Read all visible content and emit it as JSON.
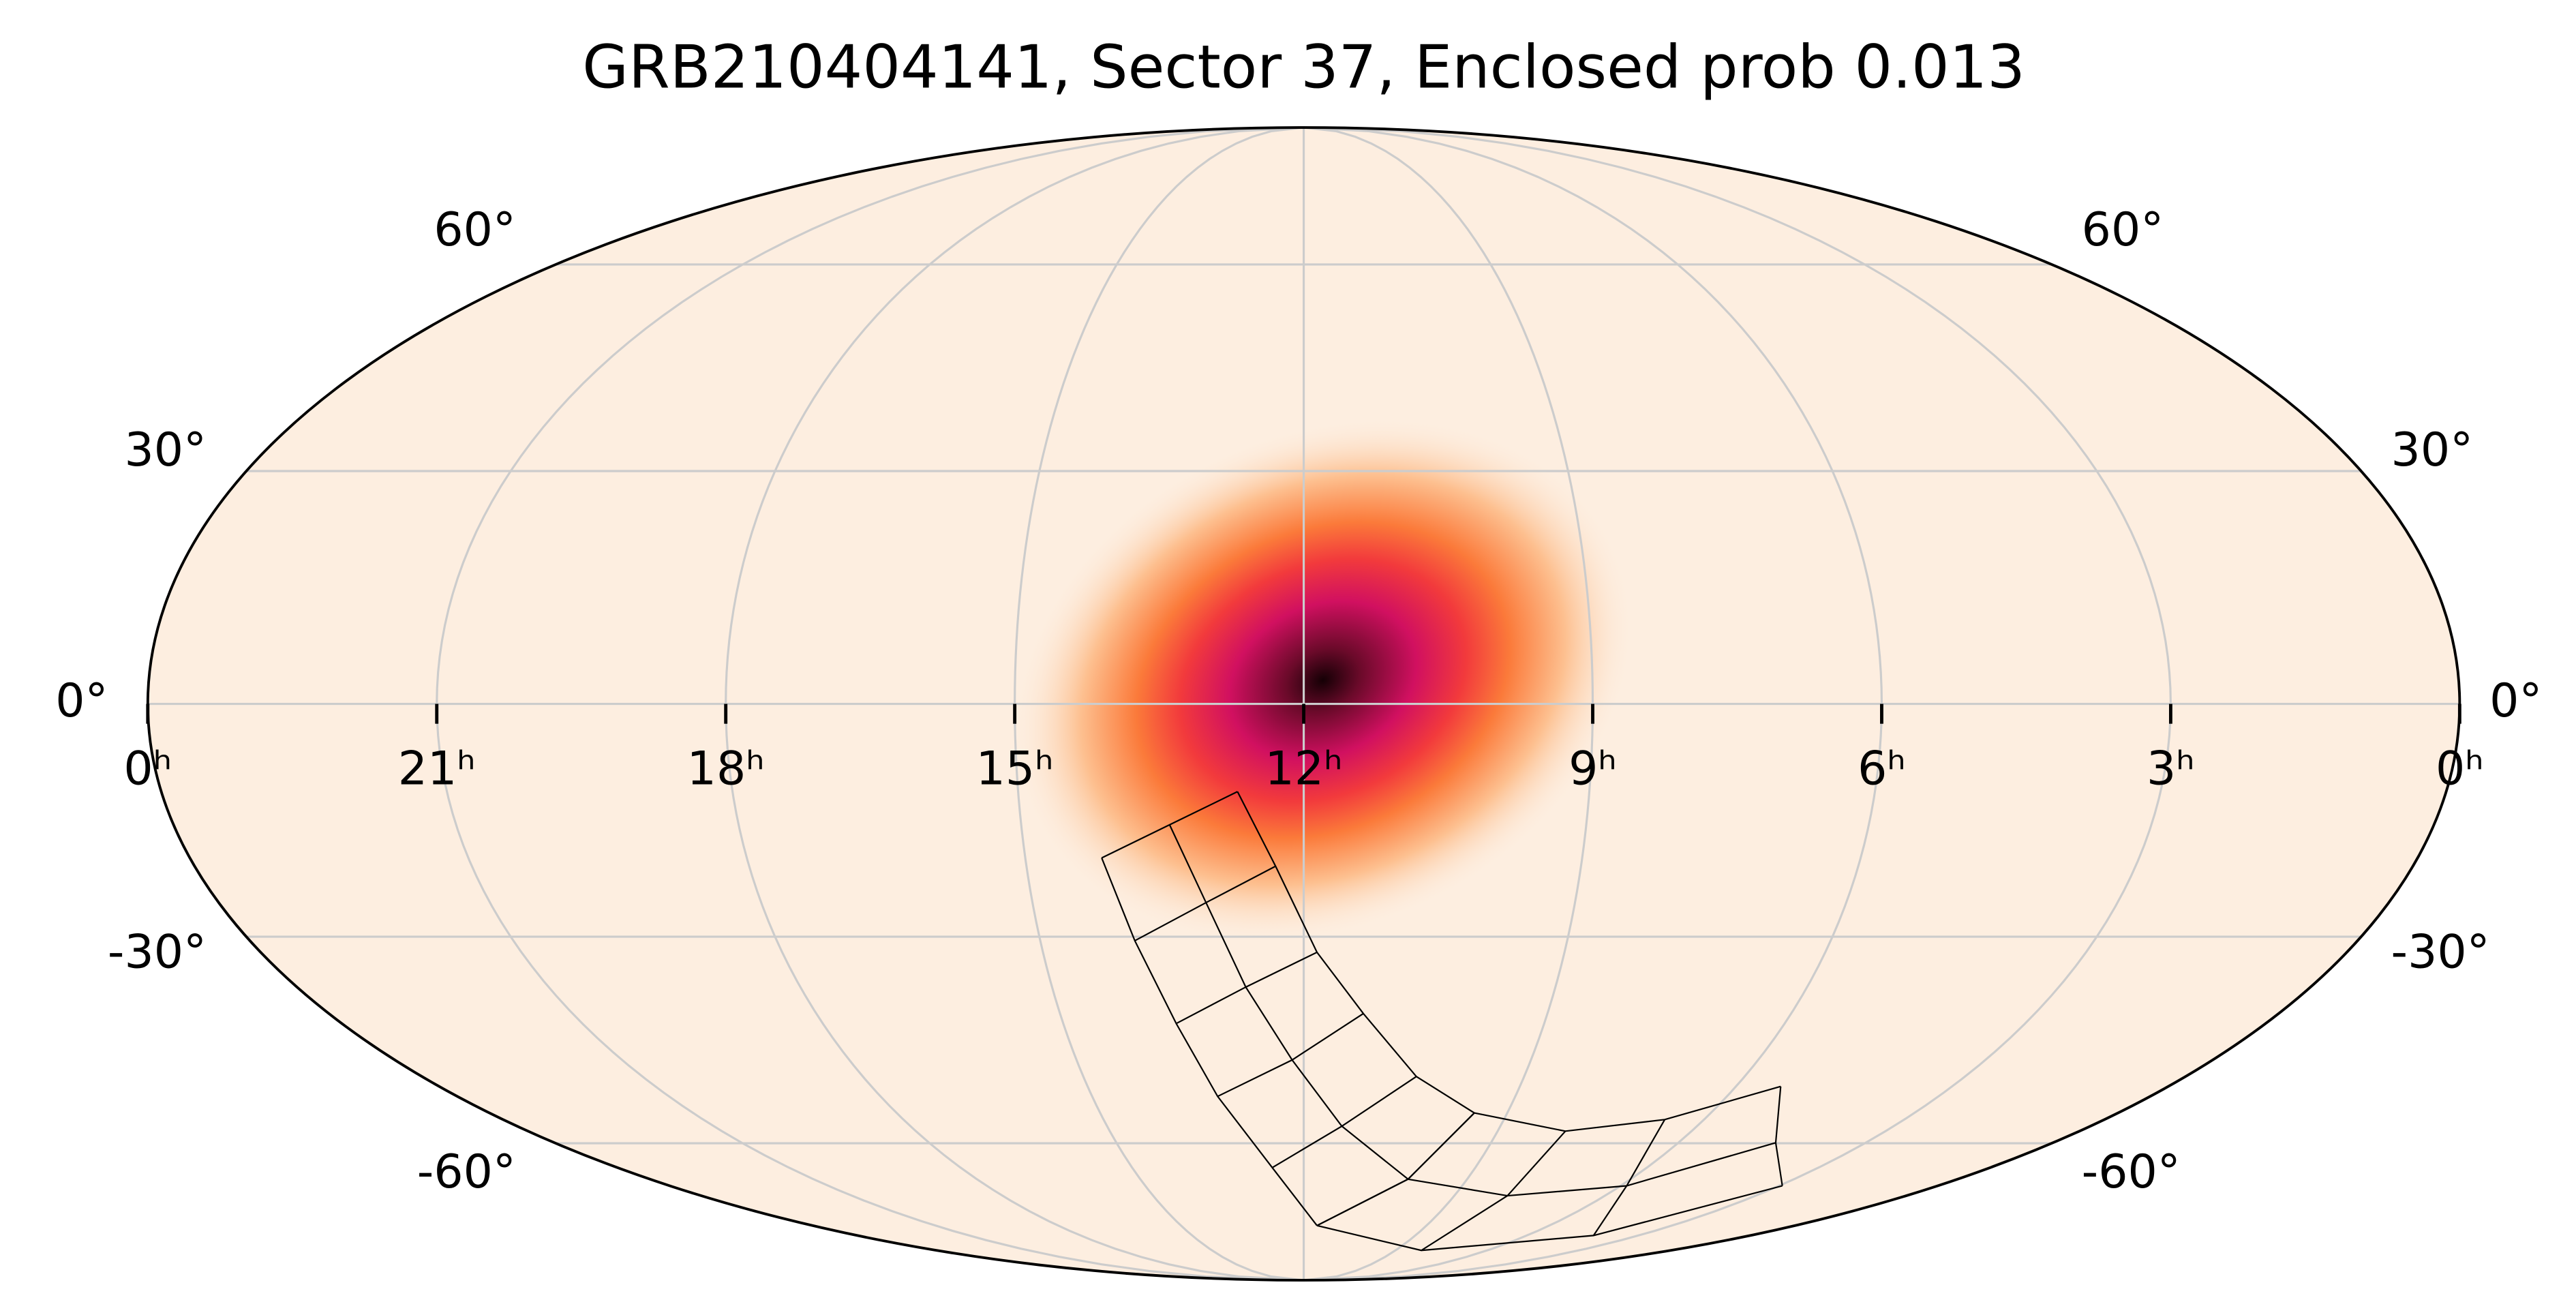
{
  "chart_data": {
    "type": "mollweide",
    "title": "GRB210404141, Sector 37, Enclosed prob 0.013",
    "xticks": [
      {
        "value": 24,
        "label": "0ʰ"
      },
      {
        "value": 21,
        "label": "21ʰ"
      },
      {
        "value": 18,
        "label": "18ʰ"
      },
      {
        "value": 15,
        "label": "15ʰ"
      },
      {
        "value": 12,
        "label": "12ʰ"
      },
      {
        "value": 9,
        "label": "9ʰ"
      },
      {
        "value": 6,
        "label": "6ʰ"
      },
      {
        "value": 3,
        "label": "3ʰ"
      },
      {
        "value": 0,
        "label": "0ʰ"
      }
    ],
    "yticks": [
      {
        "value": 60,
        "label": "60°"
      },
      {
        "value": 30,
        "label": "30°"
      },
      {
        "value": 0,
        "label": "0°"
      },
      {
        "value": -30,
        "label": "-30°"
      },
      {
        "value": -60,
        "label": "-60°"
      }
    ],
    "xlim": [
      24,
      0
    ],
    "ylim": [
      -90,
      90
    ],
    "grid": true,
    "peak": {
      "ra": 11.8,
      "dec": 3
    }
  }
}
